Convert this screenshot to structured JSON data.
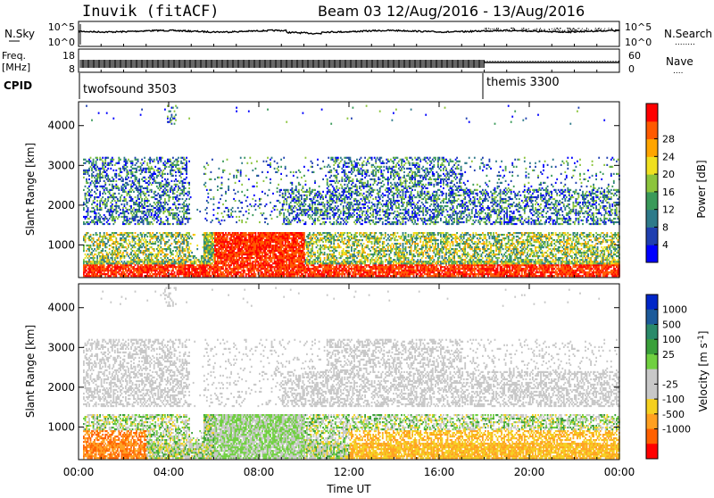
{
  "header": {
    "station": "Inuvik (fitACF)",
    "beam": "Beam 03",
    "date_range": "12/Aug/2016 - 13/Aug/2016"
  },
  "nsky_panel": {
    "left_label": "N.Sky",
    "left_ticks": [
      "10^5",
      "10^0"
    ],
    "right_ticks": [
      "10^5",
      "10^0"
    ],
    "right_label": "N.Search",
    "right_legend_line": "........"
  },
  "freq_panel": {
    "left_label_line1": "Freq.",
    "left_label_line2": "[MHz]",
    "left_ticks": [
      "18",
      "8"
    ],
    "right_ticks": [
      "60",
      "0"
    ],
    "right_label": "Nave",
    "right_legend_line": "...."
  },
  "cpid_panel": {
    "label": "CPID",
    "modes": [
      {
        "name": "twofsound 3503",
        "start_hour": 0
      },
      {
        "name": "themis 3300",
        "start_hour": 18
      }
    ]
  },
  "x_axis": {
    "label": "Time UT",
    "ticks": [
      "00:00",
      "04:00",
      "08:00",
      "12:00",
      "16:00",
      "20:00",
      "00:00"
    ],
    "range_hours": [
      0,
      24
    ]
  },
  "chart_data": [
    {
      "type": "heatmap",
      "name": "power",
      "ylabel": "Slant Range [km]",
      "yticks": [
        1000,
        2000,
        3000,
        4000
      ],
      "ylim": [
        180,
        4600
      ],
      "colorbar_label": "Power [dB]",
      "colorbar_ticks": [
        4,
        8,
        12,
        16,
        20,
        24,
        28
      ],
      "colors": [
        "#0000ff",
        "#1f3fb0",
        "#2e7a8a",
        "#3a9a5a",
        "#8cc43c",
        "#f0e020",
        "#ffa500",
        "#ff5a00",
        "#ff0000"
      ]
    },
    {
      "type": "heatmap",
      "name": "velocity",
      "ylabel": "Slant Range [km]",
      "yticks": [
        1000,
        2000,
        3000,
        4000
      ],
      "ylim": [
        180,
        4600
      ],
      "colorbar_label": "Velocity [m s^-1]",
      "colorbar_ticks": [
        1000,
        500,
        100,
        25,
        -25,
        -100,
        -500,
        -1000
      ],
      "colors": [
        "#0026c8",
        "#1c5a9a",
        "#2a8a6a",
        "#3aa03a",
        "#70d040",
        "#c8c8c8",
        "#c8c8c8",
        "#f5d020",
        "#ffa020",
        "#ff6000",
        "#ff0000"
      ]
    }
  ]
}
